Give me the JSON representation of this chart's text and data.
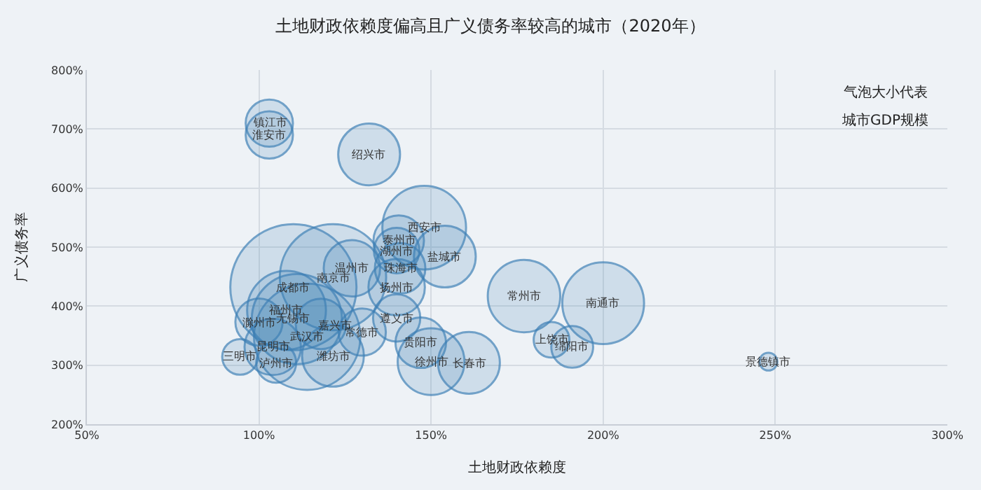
{
  "chart_data": {
    "type": "bubble",
    "title": "土地财政依赖度偏高且广义债务率较高的城市（2020年）",
    "xlabel": "土地财政依赖度",
    "ylabel": "广义债务率",
    "x": [
      103,
      103,
      132,
      148,
      140.6,
      140,
      154,
      141,
      140,
      140,
      121.5,
      127,
      110,
      108,
      100,
      111,
      118,
      114,
      130,
      104,
      94.5,
      105,
      121.5,
      147,
      150,
      161,
      177,
      200,
      185,
      191,
      248
    ],
    "values": [
      710,
      690,
      657,
      533,
      511,
      494,
      484,
      464,
      432,
      380,
      449,
      464,
      432,
      393,
      373,
      378,
      370,
      348,
      356,
      331,
      314,
      304,
      316,
      338,
      306,
      304,
      417,
      405,
      343,
      331,
      306
    ],
    "sizes": [
      0.14,
      0.14,
      0.24,
      0.44,
      0.16,
      0.13,
      0.24,
      0.16,
      0.2,
      0.14,
      0.71,
      0.2,
      1,
      0.39,
      0.14,
      0.51,
      0.16,
      0.71,
      0.14,
      0.2,
      0.08,
      0.1,
      0.24,
      0.16,
      0.28,
      0.24,
      0.33,
      0.42,
      0.08,
      0.11,
      0.02
    ],
    "color": "#3d7fb5",
    "annotations": [
      {
        "text": "镇江市",
        "x": 103,
        "y": 710
      },
      {
        "text": "淮安市",
        "x": 103,
        "y": 690
      },
      {
        "text": "绍兴市",
        "x": 132,
        "y": 657
      },
      {
        "text": "西安市",
        "x": 148,
        "y": 533
      },
      {
        "text": "泰州市",
        "x": 140.6,
        "y": 511
      },
      {
        "text": "湖州市",
        "x": 140,
        "y": 494
      },
      {
        "text": "盐城市",
        "x": 154,
        "y": 484
      },
      {
        "text": "珠海市",
        "x": 141,
        "y": 464
      },
      {
        "text": "扬州市",
        "x": 140,
        "y": 432
      },
      {
        "text": "遵义市",
        "x": 140,
        "y": 380
      },
      {
        "text": "南京市",
        "x": 121.5,
        "y": 449
      },
      {
        "text": "温州市",
        "x": 127,
        "y": 464
      },
      {
        "text": "成都市",
        "x": 110,
        "y": 432
      },
      {
        "text": "福州市",
        "x": 108,
        "y": 393
      },
      {
        "text": "滁州市",
        "x": 100,
        "y": 373
      },
      {
        "text": "无锡市",
        "x": 110,
        "y": 379
      },
      {
        "text": "嘉兴市",
        "x": 122,
        "y": 368
      },
      {
        "text": "武汉市",
        "x": 114,
        "y": 348
      },
      {
        "text": "常德市",
        "x": 130,
        "y": 356
      },
      {
        "text": "昆明市",
        "x": 104,
        "y": 331
      },
      {
        "text": "三明市",
        "x": 94.5,
        "y": 314
      },
      {
        "text": "泸州市",
        "x": 105,
        "y": 304
      },
      {
        "text": "潍坊市",
        "x": 121.5,
        "y": 316
      },
      {
        "text": "贵阳市",
        "x": 147,
        "y": 338
      },
      {
        "text": "徐州市",
        "x": 150,
        "y": 306
      },
      {
        "text": "长春市",
        "x": 161,
        "y": 304
      },
      {
        "text": "常州市",
        "x": 177,
        "y": 417
      },
      {
        "text": "南通市",
        "x": 200,
        "y": 405
      },
      {
        "text": "上饶市",
        "x": 185,
        "y": 343
      },
      {
        "text": "绵阳市",
        "x": 191,
        "y": 331
      },
      {
        "text": "景德镇市",
        "x": 248,
        "y": 306
      },
      "气泡大小代表",
      "城市GDP规模"
    ],
    "xlim": [
      50,
      300
    ],
    "ylim": [
      200,
      800
    ],
    "xticks": [
      {
        "value": 50,
        "label": "50%"
      },
      {
        "value": 100,
        "label": "100%"
      },
      {
        "value": 150,
        "label": "150%"
      },
      {
        "value": 200,
        "label": "200%"
      },
      {
        "value": 250,
        "label": "250%"
      },
      {
        "value": 300,
        "label": "300%"
      }
    ],
    "yticks": [
      {
        "value": 200,
        "label": "200%"
      },
      {
        "value": 300,
        "label": "300%"
      },
      {
        "value": 400,
        "label": "400%"
      },
      {
        "value": 500,
        "label": "500%"
      },
      {
        "value": 600,
        "label": "600%"
      },
      {
        "value": 700,
        "label": "700%"
      },
      {
        "value": 800,
        "label": "800%"
      }
    ],
    "grid": true,
    "marker": "circle"
  }
}
